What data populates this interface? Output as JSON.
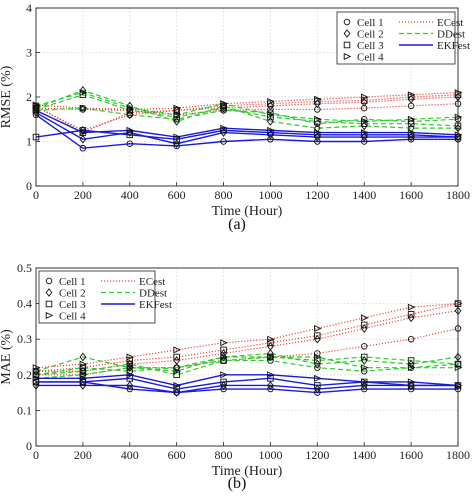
{
  "chart_data": [
    {
      "type": "line",
      "caption": "(a)",
      "ylabel": "RMSE (%)",
      "xlabel": "Time (Hour)",
      "x": [
        0,
        200,
        400,
        600,
        800,
        1000,
        1200,
        1400,
        1600,
        1800
      ],
      "xlim": [
        0,
        1800
      ],
      "ylim": [
        0,
        4
      ],
      "xticks": [
        "0",
        "200",
        "400",
        "600",
        "800",
        "1000",
        "1200",
        "1400",
        "1600",
        "1800"
      ],
      "yticks": [
        "0",
        "1",
        "2",
        "3",
        "4"
      ],
      "grid": true,
      "legend_position": "top-right",
      "legend": {
        "cells": [
          {
            "label": "Cell 1",
            "marker": "circle"
          },
          {
            "label": "Cell 2",
            "marker": "diamond"
          },
          {
            "label": "Cell 3",
            "marker": "square"
          },
          {
            "label": "Cell 4",
            "marker": "triangle-right"
          }
        ],
        "methods": [
          {
            "label": "ECest",
            "color": "#e8463f",
            "dash": "dotted"
          },
          {
            "label": "DDest",
            "color": "#2ecc2e",
            "dash": "dashed"
          },
          {
            "label": "EKFest",
            "color": "#1a1adb",
            "dash": "solid"
          }
        ]
      },
      "series": [
        {
          "cell": "Cell 1",
          "method": "ECest",
          "values": [
            1.75,
            1.72,
            1.7,
            1.6,
            1.7,
            1.72,
            1.72,
            1.75,
            1.8,
            1.85
          ]
        },
        {
          "cell": "Cell 2",
          "method": "ECest",
          "values": [
            1.78,
            1.25,
            1.6,
            1.7,
            1.75,
            1.8,
            1.85,
            1.88,
            1.95,
            2.0
          ]
        },
        {
          "cell": "Cell 3",
          "method": "ECest",
          "values": [
            1.8,
            1.2,
            1.65,
            1.7,
            1.8,
            1.85,
            1.9,
            1.92,
            2.0,
            2.05
          ]
        },
        {
          "cell": "Cell 4",
          "method": "ECest",
          "values": [
            1.82,
            1.75,
            1.72,
            1.75,
            1.85,
            1.9,
            1.95,
            2.0,
            2.05,
            2.1
          ]
        },
        {
          "cell": "Cell 1",
          "method": "DDest",
          "values": [
            1.7,
            1.75,
            1.6,
            1.5,
            1.7,
            1.65,
            1.4,
            1.5,
            1.45,
            1.5
          ]
        },
        {
          "cell": "Cell 2",
          "method": "DDest",
          "values": [
            1.75,
            2.15,
            1.8,
            1.45,
            1.8,
            1.45,
            1.3,
            1.35,
            1.3,
            1.3
          ]
        },
        {
          "cell": "Cell 3",
          "method": "DDest",
          "values": [
            1.72,
            2.05,
            1.7,
            1.55,
            1.75,
            1.55,
            1.45,
            1.4,
            1.4,
            1.35
          ]
        },
        {
          "cell": "Cell 4",
          "method": "DDest",
          "values": [
            1.8,
            2.1,
            1.75,
            1.6,
            1.85,
            1.6,
            1.5,
            1.45,
            1.5,
            1.55
          ]
        },
        {
          "cell": "Cell 1",
          "method": "EKFest",
          "values": [
            1.6,
            0.85,
            0.95,
            0.9,
            1.0,
            1.05,
            1.0,
            1.0,
            1.05,
            1.05
          ]
        },
        {
          "cell": "Cell 2",
          "method": "EKFest",
          "values": [
            1.65,
            1.05,
            1.2,
            0.95,
            1.2,
            1.15,
            1.1,
            1.1,
            1.1,
            1.1
          ]
        },
        {
          "cell": "Cell 3",
          "method": "EKFest",
          "values": [
            1.1,
            1.25,
            1.15,
            1.05,
            1.25,
            1.2,
            1.15,
            1.15,
            1.15,
            1.1
          ]
        },
        {
          "cell": "Cell 4",
          "method": "EKFest",
          "values": [
            1.7,
            1.2,
            1.25,
            1.1,
            1.3,
            1.25,
            1.2,
            1.2,
            1.2,
            1.15
          ]
        }
      ]
    },
    {
      "type": "line",
      "caption": "(b)",
      "ylabel": "MAE (%)",
      "xlabel": "Time (Hour)",
      "x": [
        0,
        200,
        400,
        600,
        800,
        1000,
        1200,
        1400,
        1600,
        1800
      ],
      "xlim": [
        0,
        1800
      ],
      "ylim": [
        0,
        0.5
      ],
      "xticks": [
        "0",
        "200",
        "400",
        "600",
        "800",
        "1000",
        "1200",
        "1400",
        "1600",
        "1800"
      ],
      "yticks": [
        "0",
        "0.1",
        "0.2",
        "0.3",
        "0.4",
        "0.5"
      ],
      "grid": true,
      "legend_position": "top-left",
      "legend": {
        "cells": [
          {
            "label": "Cell 1",
            "marker": "circle"
          },
          {
            "label": "Cell 2",
            "marker": "diamond"
          },
          {
            "label": "Cell 3",
            "marker": "square"
          },
          {
            "label": "Cell 4",
            "marker": "triangle-right"
          }
        ],
        "methods": [
          {
            "label": "ECest",
            "color": "#e8463f",
            "dash": "dotted"
          },
          {
            "label": "DDest",
            "color": "#2ecc2e",
            "dash": "dashed"
          },
          {
            "label": "EKFest",
            "color": "#1a1adb",
            "dash": "solid"
          }
        ]
      },
      "series": [
        {
          "cell": "Cell 1",
          "method": "ECest",
          "values": [
            0.2,
            0.2,
            0.22,
            0.22,
            0.24,
            0.25,
            0.26,
            0.28,
            0.3,
            0.33
          ]
        },
        {
          "cell": "Cell 2",
          "method": "ECest",
          "values": [
            0.21,
            0.21,
            0.23,
            0.24,
            0.26,
            0.28,
            0.3,
            0.33,
            0.36,
            0.38
          ]
        },
        {
          "cell": "Cell 3",
          "method": "ECest",
          "values": [
            0.21,
            0.22,
            0.24,
            0.25,
            0.27,
            0.29,
            0.31,
            0.34,
            0.37,
            0.4
          ]
        },
        {
          "cell": "Cell 4",
          "method": "ECest",
          "values": [
            0.22,
            0.23,
            0.25,
            0.27,
            0.29,
            0.3,
            0.33,
            0.36,
            0.39,
            0.4
          ]
        },
        {
          "cell": "Cell 1",
          "method": "DDest",
          "values": [
            0.2,
            0.22,
            0.21,
            0.22,
            0.24,
            0.24,
            0.22,
            0.21,
            0.22,
            0.23
          ]
        },
        {
          "cell": "Cell 2",
          "method": "DDest",
          "values": [
            0.21,
            0.25,
            0.22,
            0.22,
            0.25,
            0.26,
            0.23,
            0.24,
            0.23,
            0.25
          ]
        },
        {
          "cell": "Cell 3",
          "method": "DDest",
          "values": [
            0.2,
            0.21,
            0.23,
            0.2,
            0.24,
            0.25,
            0.24,
            0.25,
            0.24,
            0.23
          ]
        },
        {
          "cell": "Cell 4",
          "method": "DDest",
          "values": [
            0.19,
            0.2,
            0.22,
            0.21,
            0.25,
            0.25,
            0.25,
            0.22,
            0.22,
            0.22
          ]
        },
        {
          "cell": "Cell 1",
          "method": "EKFest",
          "values": [
            0.18,
            0.18,
            0.16,
            0.15,
            0.16,
            0.16,
            0.15,
            0.16,
            0.16,
            0.16
          ]
        },
        {
          "cell": "Cell 2",
          "method": "EKFest",
          "values": [
            0.17,
            0.17,
            0.17,
            0.15,
            0.17,
            0.17,
            0.16,
            0.17,
            0.17,
            0.17
          ]
        },
        {
          "cell": "Cell 3",
          "method": "EKFest",
          "values": [
            0.18,
            0.18,
            0.19,
            0.16,
            0.18,
            0.19,
            0.17,
            0.18,
            0.17,
            0.17
          ]
        },
        {
          "cell": "Cell 4",
          "method": "EKFest",
          "values": [
            0.19,
            0.19,
            0.2,
            0.17,
            0.2,
            0.2,
            0.19,
            0.18,
            0.18,
            0.17
          ]
        }
      ]
    }
  ]
}
